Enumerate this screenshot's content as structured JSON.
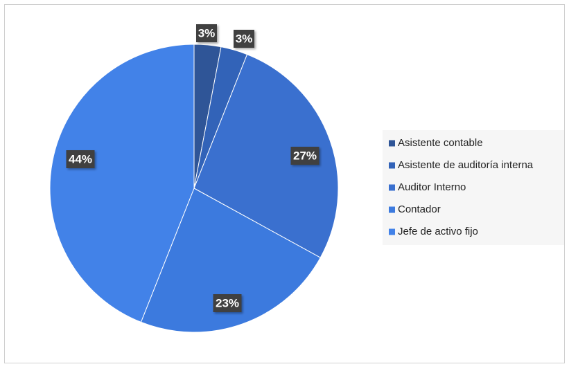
{
  "chart_data": {
    "type": "pie",
    "categories": [
      "Asistente contable",
      "Asistente de auditoría interna",
      "Auditor Interno",
      "Contador",
      "Jefe de activo fijo"
    ],
    "values": [
      3,
      3,
      27,
      23,
      44
    ],
    "value_labels": [
      "3%",
      "3%",
      "27%",
      "23%",
      "44%"
    ],
    "colors": [
      "#2f5597",
      "#3263b8",
      "#3a70cf",
      "#3c7ade",
      "#4282e8"
    ],
    "legend": "right"
  }
}
